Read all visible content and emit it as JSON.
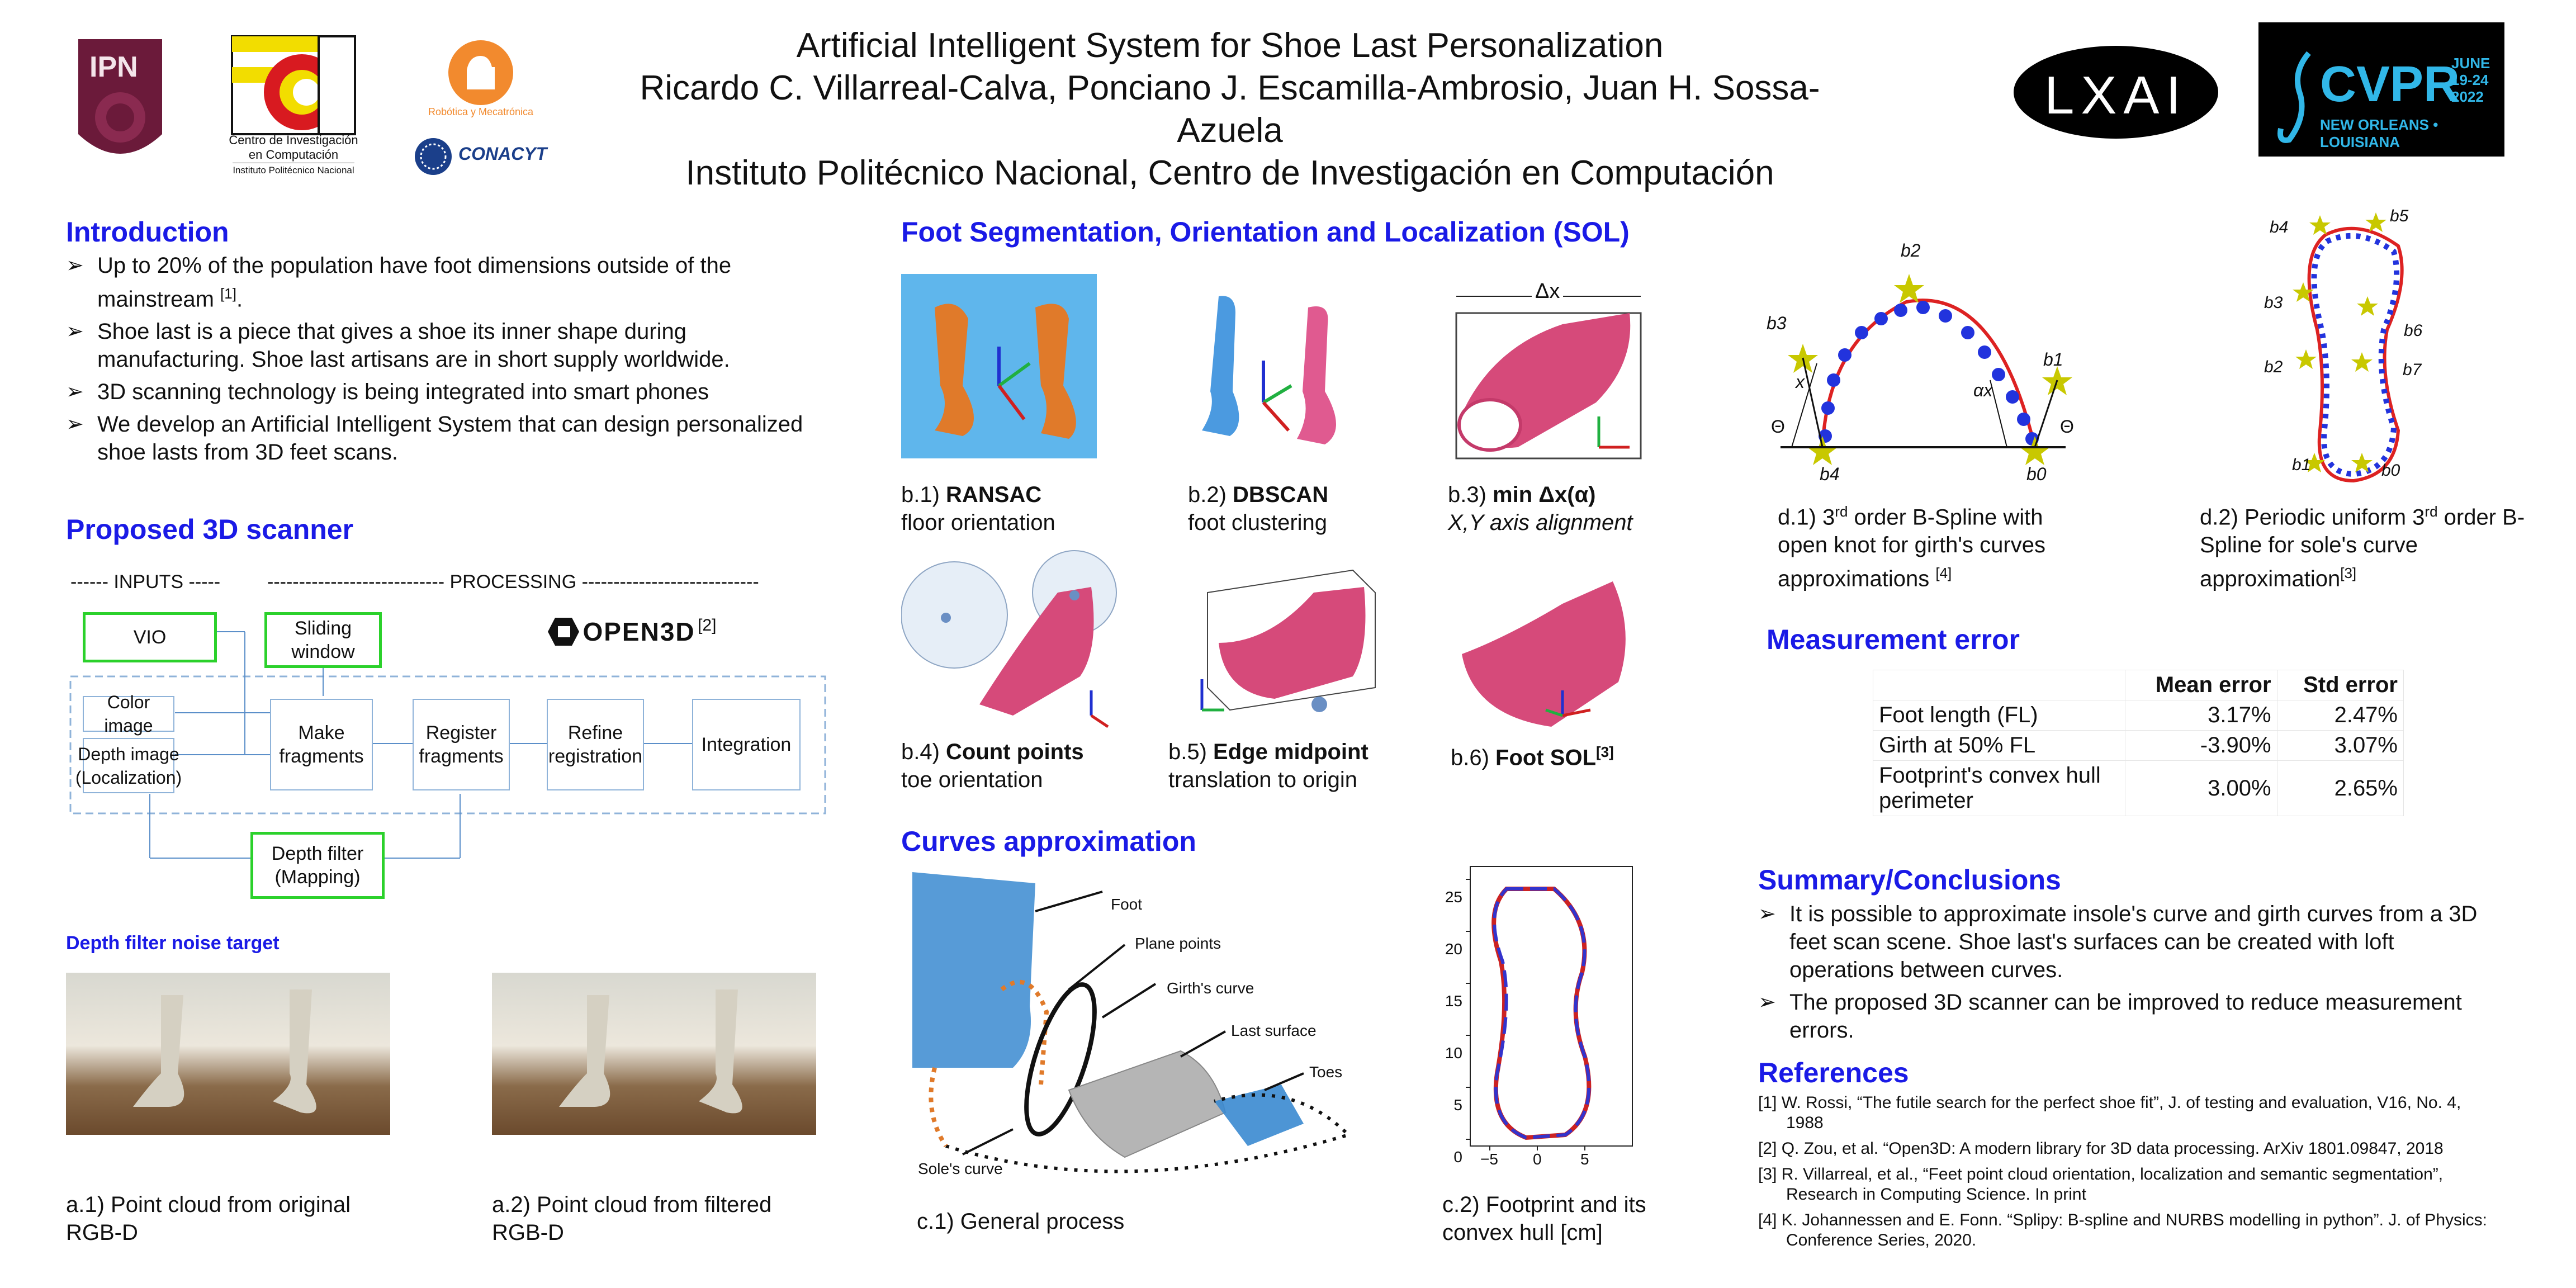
{
  "header": {
    "title": "Artificial Intelligent System for Shoe Last Personalization",
    "authors": "Ricardo C. Villarreal-Calva, Ponciano J. Escamilla-Ambrosio, Juan H. Sossa-Azuela",
    "affiliation": "Instituto Politécnico Nacional, Centro de Investigación en Computación",
    "logos": {
      "ipn": "IPN",
      "cic_line1": "Centro de Investigación",
      "cic_line2": "en Computación",
      "cic_line3": "Instituto Politécnico Nacional",
      "robotica": "Robótica y Mecatrónica",
      "conacyt": "CONACYT",
      "lxai": "LXAI",
      "cvpr": "CVPR",
      "cvpr_date1": "JUNE",
      "cvpr_date2": "19-24",
      "cvpr_year": "2022",
      "cvpr_city": "NEW ORLEANS • LOUISIANA"
    }
  },
  "intro": {
    "heading": "Introduction",
    "items": [
      {
        "text": "Up to 20% of the population have foot dimensions outside of the mainstream ",
        "ref": "[1]",
        "tail": "."
      },
      {
        "text": "Shoe last is a piece that gives a shoe its inner shape during manufacturing.  Shoe last artisans are in short supply worldwide."
      },
      {
        "text": "3D scanning technology is being integrated into smart phones"
      },
      {
        "text": "We develop an Artificial Intelligent System that can design personalized shoe lasts from 3D feet scans."
      }
    ]
  },
  "scanner": {
    "heading": "Proposed 3D scanner",
    "inputs_label": "------ INPUTS -----",
    "processing_label": "---------------------------- PROCESSING ----------------------------",
    "open3d": "OPEN3D",
    "open3d_ref": "[2]",
    "vio": "VIO",
    "sliding": "Sliding window",
    "color_image": "Color image",
    "depth_image": "Depth image (Localization)",
    "make_fragments": "Make fragments",
    "register_fragments": "Register fragments",
    "refine_registration": "Refine registration",
    "integration": "Integration",
    "depth_filter": "Depth filter (Mapping)"
  },
  "depth_filter": {
    "heading": "Depth filter noise target",
    "cap_a1": "a.1) Point cloud from original RGB-D",
    "cap_a2": "a.2) Point cloud from filtered RGB-D"
  },
  "sol": {
    "heading": "Foot Segmentation, Orientation and Localization (SOL)",
    "b1_bold": "RANSAC",
    "b1_pre": "b.1) ",
    "b1_sub": "floor orientation",
    "b2_bold": "DBSCAN",
    "b2_pre": "b.2) ",
    "b2_sub": "foot clustering",
    "b3_bold": "min Δx(α)",
    "b3_pre": "b.3) ",
    "b3_sub": "X,Y axis alignment",
    "b3_delta": "Δx",
    "b4_bold": "Count points",
    "b4_pre": "b.4) ",
    "b4_sub": "toe orientation",
    "b5_bold": "Edge midpoint",
    "b5_pre": "b.5) ",
    "b5_sub": "translation to origin",
    "b6_bold": "Foot SOL",
    "b6_pre": "b.6) ",
    "b6_ref": "[3]"
  },
  "curves": {
    "heading": "Curves approximation",
    "labels": {
      "foot": "Foot",
      "plane": "Plane points",
      "girth": "Girth's curve",
      "last": "Last surface",
      "toes": "Toes",
      "sole": "Sole's curve"
    },
    "cap_c1": "c.1) General process",
    "cap_c2": "c.2) Footprint and its convex hull [cm]",
    "yticks": [
      "25",
      "20",
      "15",
      "10",
      "5",
      "0"
    ],
    "xticks": [
      "−5",
      "0",
      "5"
    ]
  },
  "splines": {
    "d1_labels": {
      "b2": "b2",
      "b3": "b3",
      "b1": "b1",
      "b4": "b4",
      "b0": "b0",
      "x": "x",
      "ax": "αx",
      "theta": "Θ"
    },
    "d1_caption_pre": "d.1) 3",
    "d1_sup": "rd",
    "d1_caption_post": " order B-Spline with open knot for girth's curves approximations ",
    "d1_ref": "[4]",
    "d2_labels": {
      "b4": "b4",
      "b5": "b5",
      "b3": "b3",
      "b6": "b6",
      "b2": "b2",
      "b7": "b7",
      "b1": "b1",
      "b0": "b0"
    },
    "d2_caption_pre": "d.2) Periodic uniform 3",
    "d2_sup": "rd",
    "d2_caption_post": " order B-Spline for sole's curve approximation",
    "d2_ref": "[3]"
  },
  "error": {
    "heading": "Measurement error",
    "col1": "Mean error",
    "col2": "Std error",
    "rows": [
      {
        "label": "Foot length (FL)",
        "mean": "3.17%",
        "std": "2.47%"
      },
      {
        "label": "Girth at 50% FL",
        "mean": "-3.90%",
        "std": "3.07%"
      },
      {
        "label": "Footprint's convex hull perimeter",
        "mean": "3.00%",
        "std": "2.65%"
      }
    ]
  },
  "summary": {
    "heading": "Summary/Conclusions",
    "items": [
      "It is possible to approximate insole's curve and girth curves from a 3D feet scan scene.  Shoe last's surfaces can be created with loft operations between curves.",
      "The proposed 3D scanner can be improved to reduce measurement errors."
    ]
  },
  "references": {
    "heading": "References",
    "items": [
      "[1] W. Rossi, “The futile search for the perfect shoe fit”, J. of testing and evaluation, V16, No. 4, 1988",
      "[2] Q. Zou, et al. “Open3D: A modern library for 3D data processing. ArXiv 1801.09847, 2018",
      "[3] R. Villarreal, et al., “Feet point cloud orientation, localization and semantic segmentation”, Research in Computing Science. In print",
      "[4] K. Johannessen and E. Fonn. “Splipy: B-spline and NURBS modelling in python”. J. of Physics: Conference Series, 2020."
    ]
  },
  "colors": {
    "heading": "#1a1ae6",
    "green_box": "#2bd12b",
    "accent_red": "#e02020",
    "dots_blue": "#2233dd",
    "star": "#c8c800"
  }
}
